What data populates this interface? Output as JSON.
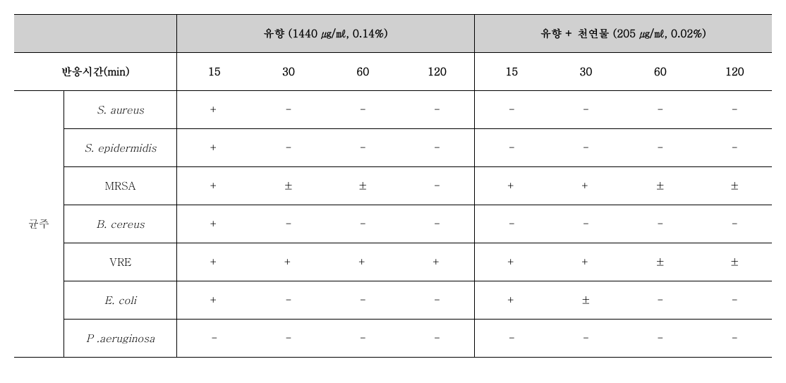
{
  "header": {
    "group1": "유향 (1440 ㎍/㎖, 0.14%)",
    "group2": "유향 + 천연물 (205 ㎍/㎖, 0.02%)",
    "time_label": "반응시간(min)",
    "times": [
      "15",
      "30",
      "60",
      "120",
      "15",
      "30",
      "60",
      "120"
    ]
  },
  "row_label": "균주",
  "species": [
    "S. aureus",
    "S. epidermidis",
    "MRSA",
    "B. cereus",
    "VRE",
    "E. coli",
    "P .aeruginosa"
  ],
  "values": [
    [
      "+",
      "-",
      "-",
      "-",
      "-",
      "-",
      "-",
      "-"
    ],
    [
      "+",
      "-",
      "-",
      "-",
      "-",
      "-",
      "-",
      "-"
    ],
    [
      "+",
      "±",
      "±",
      "-",
      "+",
      "+",
      "±",
      "±"
    ],
    [
      "+",
      "-",
      "-",
      "-",
      "-",
      "-",
      "-",
      "-"
    ],
    [
      "+",
      "+",
      "+",
      "+",
      "+",
      "+",
      "±",
      "±"
    ],
    [
      "+",
      "-",
      "-",
      "-",
      "+",
      "±",
      "-",
      "-"
    ],
    [
      "-",
      "-",
      "-",
      "-",
      "-",
      "-",
      "-",
      "-"
    ]
  ],
  "colors": {
    "header_bg": "#d0d0d0",
    "border": "#000000",
    "background": "#ffffff",
    "text": "#000000"
  },
  "font": {
    "size_pt": 15
  }
}
